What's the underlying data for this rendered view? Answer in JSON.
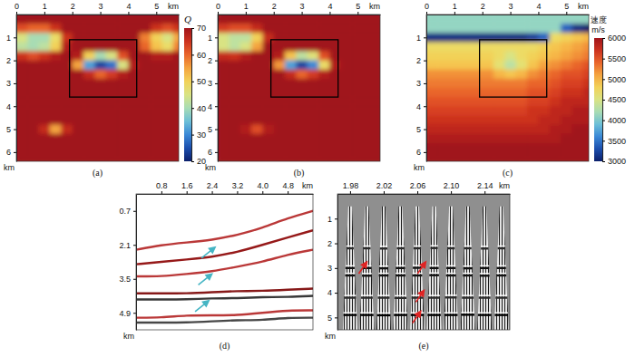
{
  "chart_data": [
    {
      "type": "heatmap",
      "label": "(a)",
      "xlabel": "km",
      "ylabel": "km",
      "xlim": [
        0,
        5.8
      ],
      "ylim": [
        0,
        6.4
      ],
      "xticks": [
        0,
        1,
        2,
        3,
        4,
        5
      ],
      "yticks": [
        1,
        2,
        3,
        4,
        5,
        6
      ],
      "x": [
        0.2,
        0.6,
        1.0,
        1.4,
        1.8,
        2.2,
        2.6,
        3.0,
        3.4,
        3.8,
        4.2,
        4.6,
        5.0,
        5.4,
        5.8
      ],
      "y": [
        0.2,
        0.6,
        1.0,
        1.4,
        1.8,
        2.2,
        2.6,
        3.0,
        3.4,
        3.8,
        4.2,
        4.6,
        5.0,
        5.4,
        5.8,
        6.2
      ],
      "zlim": [
        20,
        70
      ],
      "cells": [
        [
          70,
          70,
          70,
          70,
          70,
          70,
          70,
          70,
          70,
          70,
          70,
          70,
          70,
          70,
          70
        ],
        [
          62,
          60,
          60,
          65,
          70,
          70,
          70,
          70,
          70,
          70,
          70,
          70,
          65,
          62,
          65
        ],
        [
          45,
          40,
          40,
          48,
          65,
          70,
          70,
          70,
          70,
          70,
          70,
          58,
          50,
          45,
          55
        ],
        [
          42,
          40,
          42,
          50,
          68,
          70,
          70,
          70,
          70,
          70,
          70,
          60,
          52,
          48,
          58
        ],
        [
          65,
          62,
          65,
          68,
          70,
          68,
          50,
          40,
          45,
          62,
          70,
          70,
          68,
          68,
          70
        ],
        [
          70,
          70,
          70,
          70,
          70,
          55,
          32,
          24,
          28,
          45,
          68,
          70,
          70,
          70,
          70
        ],
        [
          70,
          70,
          70,
          70,
          70,
          70,
          66,
          60,
          64,
          68,
          70,
          70,
          70,
          70,
          70
        ],
        [
          70,
          70,
          70,
          70,
          70,
          70,
          70,
          70,
          70,
          70,
          70,
          70,
          70,
          70,
          70
        ],
        [
          70,
          70,
          70,
          70,
          70,
          70,
          70,
          70,
          70,
          70,
          70,
          70,
          70,
          70,
          70
        ],
        [
          70,
          70,
          70,
          70,
          70,
          70,
          70,
          70,
          70,
          70,
          70,
          70,
          70,
          70,
          70
        ],
        [
          70,
          70,
          70,
          70,
          70,
          70,
          70,
          70,
          70,
          70,
          70,
          70,
          70,
          70,
          70
        ],
        [
          70,
          70,
          70,
          70,
          70,
          70,
          70,
          70,
          70,
          70,
          70,
          70,
          70,
          70,
          70
        ],
        [
          70,
          70,
          66,
          55,
          66,
          70,
          70,
          70,
          70,
          70,
          70,
          70,
          70,
          70,
          70
        ],
        [
          70,
          70,
          70,
          70,
          70,
          70,
          70,
          70,
          70,
          70,
          70,
          70,
          70,
          70,
          70
        ],
        [
          70,
          70,
          70,
          70,
          70,
          70,
          70,
          70,
          70,
          70,
          70,
          70,
          70,
          70,
          70
        ],
        [
          70,
          70,
          70,
          70,
          70,
          70,
          70,
          70,
          70,
          70,
          70,
          70,
          70,
          70,
          70
        ]
      ],
      "colorbar": {
        "title": "Q",
        "ticks": [
          20,
          30,
          40,
          50,
          60,
          70
        ]
      },
      "box": {
        "x": [
          1.9,
          4.3
        ],
        "y": [
          1.1,
          3.6
        ]
      }
    },
    {
      "type": "heatmap",
      "label": "(b)",
      "xlabel": "km",
      "ylabel": "km",
      "xlim": [
        0,
        5.8
      ],
      "ylim": [
        0,
        6.4
      ],
      "xticks": [
        0,
        1,
        2,
        3,
        4,
        5
      ],
      "yticks": [
        1,
        2,
        3,
        4,
        5,
        6
      ],
      "x": [
        0.2,
        0.6,
        1.0,
        1.4,
        1.8,
        2.2,
        2.6,
        3.0,
        3.4,
        3.8,
        4.2,
        4.6,
        5.0,
        5.4,
        5.8
      ],
      "y": [
        0.2,
        0.6,
        1.0,
        1.4,
        1.8,
        2.2,
        2.6,
        3.0,
        3.4,
        3.8,
        4.2,
        4.6,
        5.0,
        5.4,
        5.8,
        6.2
      ],
      "zlim": [
        20,
        70
      ],
      "cells": [
        [
          70,
          70,
          70,
          70,
          70,
          70,
          70,
          70,
          70,
          70,
          70,
          70,
          70,
          70,
          70
        ],
        [
          64,
          62,
          62,
          66,
          70,
          70,
          70,
          70,
          70,
          70,
          70,
          70,
          70,
          70,
          70
        ],
        [
          45,
          42,
          42,
          50,
          66,
          70,
          70,
          70,
          70,
          70,
          70,
          70,
          70,
          70,
          70
        ],
        [
          45,
          42,
          45,
          55,
          70,
          70,
          70,
          70,
          70,
          70,
          70,
          70,
          70,
          70,
          70
        ],
        [
          66,
          65,
          68,
          70,
          70,
          68,
          52,
          42,
          46,
          62,
          70,
          70,
          70,
          70,
          70
        ],
        [
          70,
          70,
          70,
          70,
          70,
          56,
          32,
          24,
          30,
          48,
          68,
          70,
          70,
          70,
          70
        ],
        [
          70,
          70,
          70,
          70,
          70,
          70,
          66,
          60,
          64,
          68,
          70,
          70,
          70,
          70,
          70
        ],
        [
          70,
          70,
          70,
          70,
          70,
          70,
          70,
          70,
          70,
          70,
          70,
          70,
          70,
          70,
          70
        ],
        [
          70,
          70,
          70,
          70,
          70,
          70,
          70,
          70,
          70,
          70,
          70,
          70,
          70,
          70,
          70
        ],
        [
          70,
          70,
          70,
          70,
          70,
          70,
          70,
          70,
          70,
          70,
          70,
          70,
          70,
          70,
          70
        ],
        [
          70,
          70,
          70,
          70,
          70,
          70,
          70,
          70,
          70,
          70,
          70,
          70,
          70,
          70,
          70
        ],
        [
          70,
          70,
          70,
          70,
          70,
          70,
          70,
          70,
          70,
          70,
          70,
          70,
          70,
          70,
          70
        ],
        [
          70,
          70,
          68,
          62,
          68,
          70,
          70,
          70,
          70,
          70,
          70,
          70,
          70,
          70,
          70
        ],
        [
          70,
          70,
          70,
          70,
          70,
          70,
          70,
          70,
          70,
          70,
          70,
          70,
          70,
          70,
          70
        ],
        [
          70,
          70,
          70,
          70,
          70,
          70,
          70,
          70,
          70,
          70,
          70,
          70,
          70,
          70,
          70
        ],
        [
          70,
          70,
          70,
          70,
          70,
          70,
          70,
          70,
          70,
          70,
          70,
          70,
          70,
          70,
          70
        ]
      ],
      "box": {
        "x": [
          1.9,
          4.3
        ],
        "y": [
          1.1,
          3.6
        ]
      }
    },
    {
      "type": "heatmap",
      "label": "(c)",
      "xlabel": "km",
      "ylabel": "km",
      "xlim": [
        0,
        5.8
      ],
      "ylim": [
        0,
        6.4
      ],
      "xticks": [
        0,
        1,
        2,
        3,
        4,
        5
      ],
      "yticks": [
        1,
        2,
        3,
        4,
        5,
        6
      ],
      "x": [
        0.2,
        0.6,
        1.0,
        1.4,
        1.8,
        2.2,
        2.6,
        3.0,
        3.4,
        3.8,
        4.2,
        4.6,
        5.0,
        5.4,
        5.8
      ],
      "y": [
        0.2,
        0.6,
        1.0,
        1.4,
        1.8,
        2.2,
        2.6,
        3.0,
        3.4,
        3.8,
        4.2,
        4.6,
        5.0,
        5.4,
        5.8,
        6.2
      ],
      "zlim": [
        3000,
        6000
      ],
      "cells": [
        [
          4100,
          4100,
          4100,
          4100,
          4100,
          4100,
          4100,
          4100,
          4100,
          4100,
          4100,
          4100,
          4100,
          4100,
          4100
        ],
        [
          4100,
          4100,
          4100,
          4100,
          4100,
          4100,
          4100,
          4100,
          4100,
          4100,
          4100,
          4100,
          3400,
          3100,
          3000
        ],
        [
          3100,
          3100,
          3100,
          3100,
          3100,
          3100,
          3100,
          3100,
          3100,
          3200,
          3400,
          4700,
          4800,
          4900,
          5000
        ],
        [
          4700,
          4700,
          4700,
          4700,
          4700,
          4700,
          4700,
          4700,
          4700,
          4700,
          4800,
          4900,
          5000,
          5100,
          5200
        ],
        [
          4800,
          4800,
          4800,
          4800,
          4800,
          4800,
          4700,
          4500,
          4700,
          4800,
          4900,
          5000,
          5100,
          5200,
          5300
        ],
        [
          4900,
          4900,
          4900,
          4900,
          4900,
          4900,
          4600,
          4300,
          4600,
          4900,
          5100,
          5200,
          5300,
          5400,
          5500
        ],
        [
          5200,
          5200,
          5200,
          5200,
          5200,
          5200,
          5000,
          4900,
          5000,
          5200,
          5300,
          5400,
          5500,
          5500,
          5600
        ],
        [
          5300,
          5300,
          5300,
          5300,
          5300,
          5300,
          5300,
          5300,
          5300,
          5400,
          5400,
          5500,
          5600,
          5600,
          5700
        ],
        [
          5400,
          5400,
          5400,
          5400,
          5400,
          5400,
          5400,
          5400,
          5400,
          5500,
          5500,
          5600,
          5700,
          5700,
          5800
        ],
        [
          5500,
          5500,
          5500,
          5500,
          5500,
          5500,
          5500,
          5500,
          5500,
          5600,
          5600,
          5700,
          5800,
          5800,
          5800
        ],
        [
          5600,
          5600,
          5600,
          5600,
          5600,
          5600,
          5600,
          5600,
          5600,
          5700,
          5700,
          5800,
          5800,
          5900,
          5900
        ],
        [
          5700,
          5700,
          5700,
          5700,
          5700,
          5700,
          5700,
          5700,
          5700,
          5700,
          5800,
          5800,
          5900,
          5900,
          5900
        ],
        [
          5800,
          5800,
          5800,
          5800,
          5800,
          5800,
          5800,
          5800,
          5800,
          5800,
          5800,
          5900,
          5900,
          6000,
          6000
        ],
        [
          5900,
          5900,
          5900,
          5900,
          5900,
          5900,
          5900,
          5900,
          5900,
          5900,
          5900,
          5900,
          6000,
          6000,
          6000
        ],
        [
          6000,
          6000,
          6000,
          6000,
          6000,
          6000,
          6000,
          6000,
          6000,
          6000,
          6000,
          6000,
          6000,
          6000,
          6000
        ],
        [
          6000,
          6000,
          6000,
          6000,
          6000,
          6000,
          6000,
          6000,
          6000,
          6000,
          6000,
          6000,
          6000,
          6000,
          6000
        ]
      ],
      "colorbar": {
        "title": "速度",
        "unit": "m/s",
        "ticks": [
          3000,
          3500,
          4000,
          4500,
          5000,
          5500,
          6000
        ]
      },
      "box": {
        "x": [
          1.9,
          4.3
        ],
        "y": [
          1.1,
          3.6
        ]
      }
    },
    {
      "type": "line",
      "label": "(d)",
      "xlabel": "km",
      "ylabel": "km",
      "xlim": [
        0,
        5.6
      ],
      "ylim": [
        0,
        5.6
      ],
      "xticks": [
        0.8,
        1.6,
        2.4,
        3.2,
        {
          "value": 4,
          "label": "4.0"
        },
        4.8
      ],
      "yticks": [
        0.7,
        2.1,
        3.5,
        4.9
      ],
      "x": [
        0,
        0.8,
        1.6,
        2.4,
        3.2,
        4.0,
        4.8,
        5.6
      ],
      "series": [
        {
          "color": "#b22222",
          "values": [
            2.3,
            2.1,
            2.0,
            1.9,
            1.7,
            1.4,
            1.0,
            0.7
          ]
        },
        {
          "color": "#8b0000",
          "values": [
            2.9,
            2.8,
            2.7,
            2.6,
            2.4,
            2.1,
            1.8,
            1.5
          ]
        },
        {
          "color": "#b22222",
          "values": [
            3.4,
            3.4,
            3.3,
            3.2,
            3.0,
            2.8,
            2.5,
            2.3
          ]
        },
        {
          "color": "#7a0000",
          "values": [
            4.1,
            4.1,
            4.1,
            4.05,
            4.0,
            4.0,
            3.95,
            3.9
          ]
        },
        {
          "color": "#222222",
          "values": [
            4.35,
            4.35,
            4.35,
            4.3,
            4.3,
            4.25,
            4.25,
            4.2
          ]
        },
        {
          "color": "#b22222",
          "values": [
            5.1,
            5.1,
            5.0,
            5.0,
            5.0,
            4.9,
            4.8,
            4.8
          ]
        },
        {
          "color": "#333333",
          "values": [
            5.3,
            5.3,
            5.3,
            5.25,
            5.2,
            5.2,
            5.1,
            5.1
          ]
        }
      ],
      "arrows": {
        "color": "#45b5c4",
        "points": [
          {
            "x": 2.5,
            "y": 2.2
          },
          {
            "x": 2.4,
            "y": 3.3
          },
          {
            "x": 2.3,
            "y": 4.4
          }
        ]
      }
    },
    {
      "type": "gathers",
      "label": "(e)",
      "xlabel": "km",
      "ylabel": "km",
      "xlim": [
        1.965,
        2.17
      ],
      "ylim": [
        0,
        5.5
      ],
      "xticks": [
        1.98,
        2.02,
        2.06,
        {
          "value": 2.1,
          "label": "2.10"
        },
        2.14
      ],
      "yticks": [
        1,
        2,
        3,
        4,
        5
      ],
      "x": [
        1.98,
        2.0,
        2.02,
        2.04,
        2.06,
        2.08,
        2.1,
        2.12,
        2.14,
        2.16
      ],
      "series": [
        {
          "color": "#2b2b2b",
          "values": [
            2.2,
            2.2,
            2.21,
            2.2,
            2.2,
            2.19,
            2.2,
            2.2,
            2.21,
            2.2
          ]
        },
        {
          "color": "#111111",
          "values": [
            3.0,
            3.0,
            3.01,
            3.0,
            2.99,
            3.0,
            3.0,
            3.01,
            3.0,
            3.0
          ]
        },
        {
          "color": "#111111",
          "values": [
            3.3,
            3.31,
            3.3,
            3.3,
            3.3,
            3.29,
            3.3,
            3.3,
            3.31,
            3.3
          ]
        },
        {
          "color": "#2b2b2b",
          "values": [
            4.2,
            4.2,
            4.2,
            4.21,
            4.2,
            4.2,
            4.19,
            4.2,
            4.2,
            4.2
          ]
        },
        {
          "color": "#000000",
          "values": [
            4.9,
            4.9,
            4.91,
            4.9,
            4.9,
            4.9,
            4.9,
            4.89,
            4.9,
            4.9
          ]
        }
      ],
      "arrows": {
        "color": "#e02424",
        "points": [
          {
            "x": 2.0,
            "y": 2.75
          },
          {
            "x": 2.07,
            "y": 2.75
          },
          {
            "x": 2.068,
            "y": 3.9
          },
          {
            "x": 2.064,
            "y": 4.75
          }
        ]
      }
    }
  ]
}
